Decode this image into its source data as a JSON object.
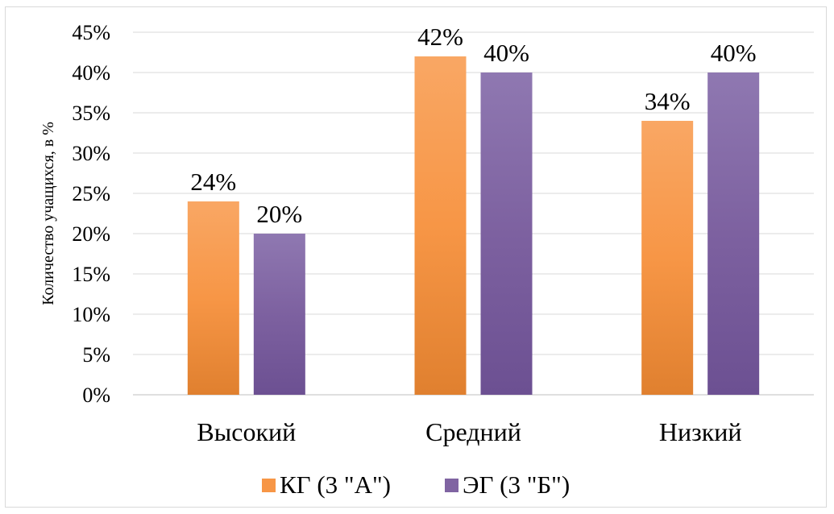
{
  "chart_data": {
    "type": "bar",
    "categories": [
      "Высокий",
      "Средний",
      "Низкий"
    ],
    "series": [
      {
        "name": "КГ (3 \"А\")",
        "values": [
          24,
          42,
          34
        ],
        "color": "#f79646"
      },
      {
        "name": "ЭГ (3 \"Б\")",
        "values": [
          20,
          40,
          40
        ],
        "color": "#8064a2"
      }
    ],
    "value_unit": "%",
    "ylabel": "Количество учащихся, в %",
    "xlabel": "",
    "ylim": [
      0,
      45
    ],
    "ytick_step": 5,
    "grid": true,
    "legend_position": "bottom",
    "data_labels": true
  }
}
